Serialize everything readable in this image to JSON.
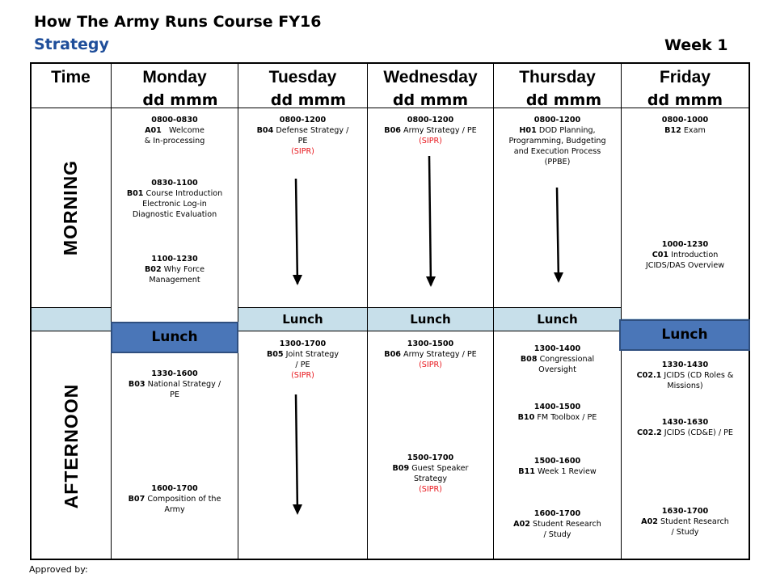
{
  "header": {
    "title": "How The Army Runs Course FY16",
    "subtitle": "Strategy",
    "week": "Week 1"
  },
  "table_headers": {
    "time": "Time",
    "days": [
      {
        "name": "Monday",
        "date": "dd mmm"
      },
      {
        "name": "Tuesday",
        "date": "dd mmm"
      },
      {
        "name": "Wednesday",
        "date": "dd mmm"
      },
      {
        "name": "Thursday",
        "date": "dd mmm"
      },
      {
        "name": "Friday",
        "date": "dd mmm"
      }
    ]
  },
  "periods": {
    "morning": "MORNING",
    "afternoon": "AFTERNOON"
  },
  "lunch_label": "Lunch",
  "monday": {
    "am": [
      {
        "time": "0800-0830",
        "code": "A01",
        "lines": [
          "Welcome",
          "& In-processing"
        ]
      },
      {
        "time": "0830-1100",
        "code": "B01",
        "lines": [
          "Course Introduction",
          "Electronic Log-in",
          "Diagnostic Evaluation"
        ]
      },
      {
        "time": "1100-1230",
        "code": "B02",
        "lines": [
          "Why Force",
          "Management"
        ]
      }
    ],
    "pm": [
      {
        "time": "1330-1600",
        "code": "B03",
        "lines": [
          "National Strategy /",
          "PE"
        ]
      },
      {
        "time": "1600-1700",
        "code": "B07",
        "lines": [
          "Composition of the",
          "Army"
        ]
      }
    ]
  },
  "tuesday": {
    "am": [
      {
        "time": "0800-1200",
        "code": "B04",
        "lines": [
          "Defense Strategy /",
          "PE"
        ],
        "note": "(SIPR)"
      }
    ],
    "pm": [
      {
        "time": "1300-1700",
        "code": "B05",
        "lines": [
          "Joint Strategy",
          "/ PE"
        ],
        "note": "(SIPR)"
      }
    ]
  },
  "wednesday": {
    "am": [
      {
        "time": "0800-1200",
        "code": "B06",
        "lines": [
          "Army Strategy / PE"
        ],
        "note": "(SIPR)"
      }
    ],
    "pm": [
      {
        "time": "1300-1500",
        "code": "B06",
        "lines": [
          "Army Strategy / PE"
        ],
        "note": "(SIPR)"
      },
      {
        "time": "1500-1700",
        "code": "B09",
        "lines": [
          "Guest Speaker",
          "Strategy"
        ],
        "note": "(SIPR)"
      }
    ]
  },
  "thursday": {
    "am": [
      {
        "time": "0800-1200",
        "code": "H01",
        "lines": [
          "DOD Planning,",
          "Programming, Budgeting",
          "and Execution Process",
          "(PPBE)"
        ]
      }
    ],
    "pm": [
      {
        "time": "1300-1400",
        "code": "B08",
        "lines": [
          "Congressional",
          "Oversight"
        ]
      },
      {
        "time": "1400-1500",
        "code": "B10",
        "lines": [
          "FM Toolbox / PE"
        ]
      },
      {
        "time": "1500-1600",
        "code": "B11",
        "lines": [
          "Week 1 Review"
        ]
      },
      {
        "time": "1600-1700",
        "code": "A02",
        "lines": [
          "Student Research",
          "/ Study"
        ]
      }
    ]
  },
  "friday": {
    "am": [
      {
        "time": "0800-1000",
        "code": "B12",
        "lines": [
          "Exam"
        ]
      },
      {
        "time": "1000-1230",
        "code": "C01",
        "lines": [
          "Introduction",
          "JCIDS/DAS Overview"
        ]
      }
    ],
    "pm": [
      {
        "time": "1330-1430",
        "code": "C02.1",
        "lines": [
          "JCIDS (CD Roles &",
          "Missions)"
        ]
      },
      {
        "time": "1430-1630",
        "code": "C02.2",
        "lines": [
          "JCIDS (CD&E) / PE"
        ]
      },
      {
        "time": "1630-1700",
        "code": "A02",
        "lines": [
          "Student Research",
          "/ Study"
        ]
      }
    ]
  },
  "footer": {
    "approved": "Approved by:"
  }
}
